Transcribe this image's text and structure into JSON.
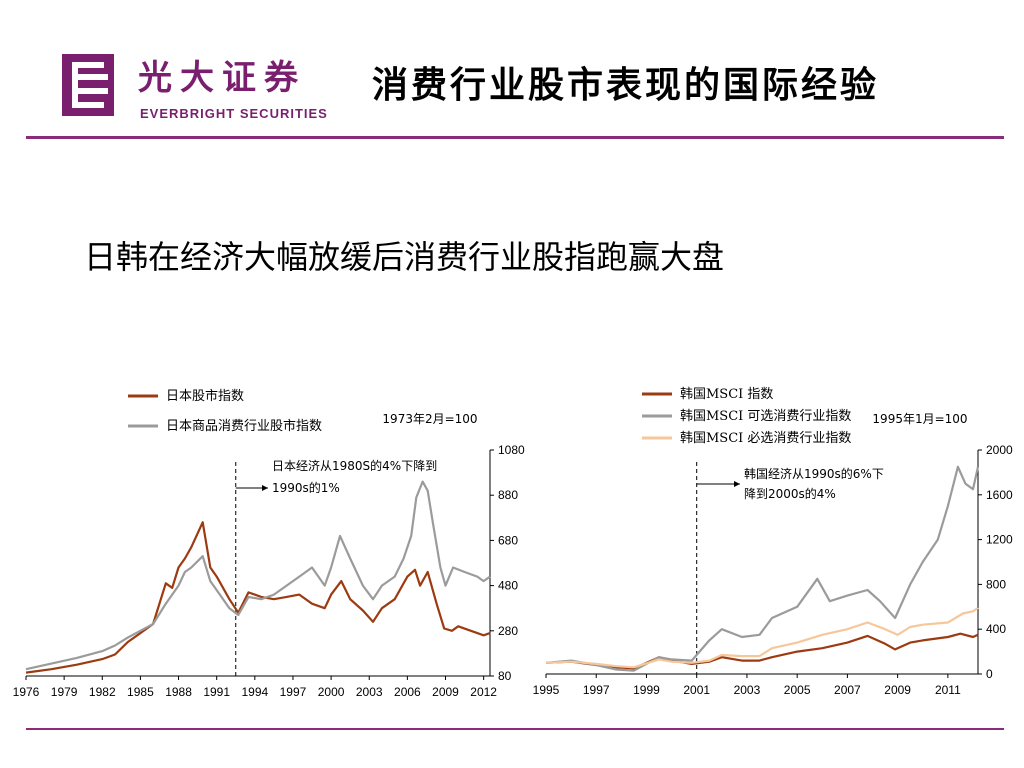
{
  "header": {
    "brand_cn": "光大证券",
    "brand_en": "EVERBRIGHT SECURITIES",
    "title": "消费行业股市表现的国际经验"
  },
  "subtitle": "日韩在经济大幅放缓后消费行业股指跑赢大盘",
  "colors": {
    "brand": "#7a1f6e",
    "rule": "#8a2b7c",
    "series_market": "#9c3a12",
    "series_gray": "#9b9b9b",
    "series_light": "#f6c79a"
  },
  "chart_data": [
    {
      "type": "line",
      "base_note": "1973年2月=100",
      "x_ticks": [
        "1976",
        "1979",
        "1982",
        "1985",
        "1988",
        "1991",
        "1994",
        "1997",
        "2000",
        "2003",
        "2006",
        "2009",
        "2012"
      ],
      "y_ticks": [
        "1080",
        "880",
        "680",
        "480",
        "280",
        "80"
      ],
      "ylim": [
        80,
        1080
      ],
      "xlim": [
        1976,
        2012.5
      ],
      "y_axis_side": "right",
      "grid": false,
      "legend_position": "top-left",
      "annotation": {
        "line1": "日本经济从1980S的4%下降到",
        "line2": "1990s的1%",
        "x": 1992.5
      },
      "series": [
        {
          "name": "日本股市指数",
          "color": "#9c3a12",
          "x": [
            1976,
            1978,
            1980,
            1982,
            1983,
            1984,
            1985,
            1986,
            1987,
            1987.5,
            1988,
            1988.5,
            1989,
            1989.9,
            1990.5,
            1991,
            1992,
            1992.7,
            1993.5,
            1994.5,
            1995.5,
            1996.5,
            1997.5,
            1998.5,
            1999.5,
            2000,
            2000.8,
            2001.5,
            2002.5,
            2003.3,
            2004,
            2005,
            2006,
            2006.6,
            2007,
            2007.6,
            2008.3,
            2008.9,
            2009.5,
            2010,
            2011,
            2012,
            2012.5
          ],
          "y": [
            95,
            110,
            130,
            155,
            175,
            230,
            270,
            310,
            490,
            470,
            560,
            600,
            650,
            760,
            560,
            520,
            420,
            360,
            450,
            430,
            420,
            430,
            440,
            400,
            380,
            440,
            500,
            420,
            370,
            320,
            380,
            420,
            520,
            550,
            480,
            540,
            400,
            290,
            280,
            300,
            280,
            260,
            270
          ]
        },
        {
          "name": "日本商品消费行业股市指数",
          "color": "#9b9b9b",
          "x": [
            1976,
            1978,
            1980,
            1982,
            1983,
            1984,
            1985,
            1986,
            1987,
            1988,
            1988.5,
            1989,
            1989.9,
            1990.5,
            1991,
            1992,
            1992.7,
            1993.5,
            1994.5,
            1995.5,
            1996.5,
            1997.5,
            1998.5,
            1999.5,
            2000,
            2000.7,
            2001.5,
            2002.5,
            2003.3,
            2004,
            2005,
            2005.7,
            2006.3,
            2006.7,
            2007.2,
            2007.6,
            2008,
            2008.6,
            2009,
            2009.6,
            2010.5,
            2011.5,
            2012,
            2012.5
          ],
          "y": [
            110,
            135,
            160,
            190,
            215,
            250,
            280,
            310,
            400,
            480,
            540,
            560,
            610,
            500,
            460,
            380,
            350,
            430,
            420,
            440,
            480,
            520,
            560,
            480,
            560,
            700,
            600,
            480,
            420,
            480,
            520,
            600,
            700,
            870,
            940,
            900,
            760,
            560,
            480,
            560,
            540,
            520,
            500,
            520
          ]
        }
      ]
    },
    {
      "type": "line",
      "base_note": "1995年1月=100",
      "x_ticks": [
        "1995",
        "1997",
        "1999",
        "2001",
        "2003",
        "2005",
        "2007",
        "2009",
        "2011"
      ],
      "y_ticks": [
        "2000",
        "1600",
        "1200",
        "800",
        "400",
        "0"
      ],
      "ylim": [
        0,
        2000
      ],
      "xlim": [
        1995,
        2012.2
      ],
      "y_axis_side": "right",
      "grid": false,
      "legend_position": "top-left",
      "annotation": {
        "line1": "韩国经济从1990s的6%下",
        "line2": "降到2000s的4%",
        "x": 2001
      },
      "series": [
        {
          "name": "韩国MSCI 指数",
          "color": "#9c3a12",
          "x": [
            1995,
            1996,
            1997,
            1997.8,
            1998.5,
            1999.5,
            2000,
            2000.8,
            2001.5,
            2002,
            2002.8,
            2003.5,
            2004,
            2005,
            2006,
            2007,
            2007.8,
            2008.5,
            2008.9,
            2009.5,
            2010,
            2011,
            2011.5,
            2012,
            2012.2
          ],
          "y": [
            100,
            110,
            80,
            60,
            50,
            150,
            120,
            90,
            110,
            150,
            120,
            120,
            150,
            200,
            230,
            280,
            340,
            270,
            220,
            280,
            300,
            330,
            360,
            330,
            350
          ]
        },
        {
          "name": "韩国MSCI 可选消费行业指数",
          "color": "#9b9b9b",
          "x": [
            1995,
            1996,
            1997,
            1997.8,
            1998.5,
            1999.5,
            2000,
            2000.8,
            2001.5,
            2002,
            2002.8,
            2003.5,
            2004,
            2005,
            2005.8,
            2006.3,
            2007,
            2007.8,
            2008.3,
            2008.9,
            2009.5,
            2010,
            2010.6,
            2011,
            2011.4,
            2011.7,
            2012,
            2012.2
          ],
          "y": [
            100,
            120,
            80,
            40,
            30,
            150,
            130,
            120,
            300,
            400,
            330,
            350,
            500,
            600,
            850,
            650,
            700,
            750,
            650,
            500,
            800,
            1000,
            1200,
            1500,
            1850,
            1700,
            1650,
            1850
          ]
        },
        {
          "name": "韩国MSCI 必选消费行业指数",
          "color": "#f6c79a",
          "x": [
            1995,
            1996,
            1997,
            1997.8,
            1998.5,
            1999.5,
            2000,
            2000.8,
            2001.5,
            2002,
            2002.8,
            2003.5,
            2004,
            2005,
            2006,
            2007,
            2007.8,
            2008.5,
            2009,
            2009.5,
            2010,
            2011,
            2011.6,
            2012,
            2012.2
          ],
          "y": [
            100,
            110,
            90,
            70,
            60,
            130,
            110,
            100,
            120,
            170,
            160,
            160,
            230,
            280,
            350,
            400,
            460,
            400,
            350,
            420,
            440,
            460,
            540,
            560,
            590
          ]
        }
      ]
    }
  ]
}
